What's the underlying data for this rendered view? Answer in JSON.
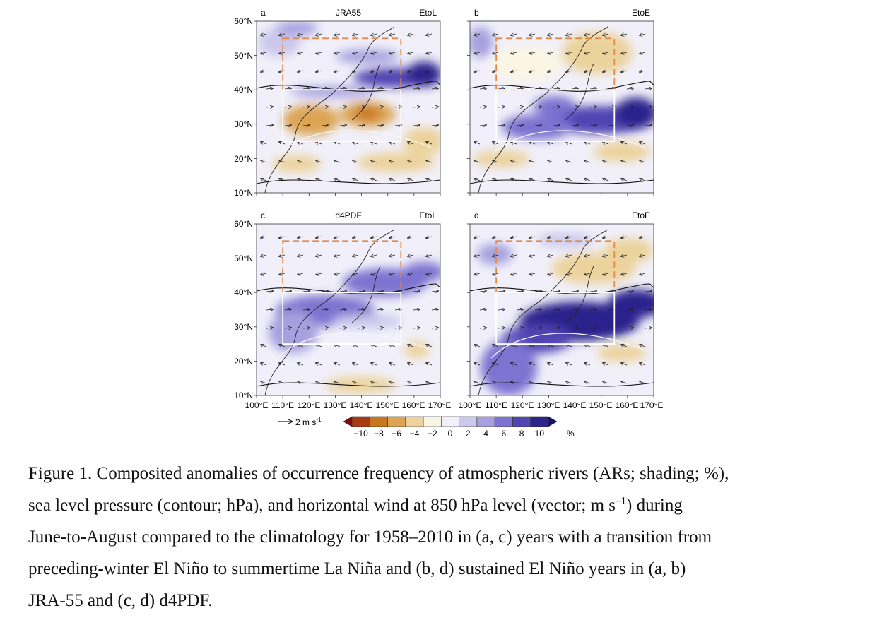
{
  "figure": {
    "panels": [
      {
        "letter": "a",
        "source": "JRA55",
        "case": "EtoL"
      },
      {
        "letter": "b",
        "source": "",
        "case": "EtoE"
      },
      {
        "letter": "c",
        "source": "d4PDF",
        "case": "EtoL"
      },
      {
        "letter": "d",
        "source": "",
        "case": "EtoE"
      }
    ],
    "lat_labels": [
      "60°N",
      "50°N",
      "40°N",
      "30°N",
      "20°N",
      "10°N"
    ],
    "lon_labels": [
      "100°E",
      "110°E",
      "120°E",
      "130°E",
      "140°E",
      "150°E",
      "160°E",
      "170°E"
    ],
    "wind_scale_label": "2 m s",
    "wind_scale_exp": "-1",
    "colorbar": {
      "colors": [
        "#7f0b0b",
        "#a83a10",
        "#c8761d",
        "#dca453",
        "#ecd39c",
        "#fbf6e4",
        "#f1f0fa",
        "#ccc8ec",
        "#a7a0df",
        "#7d73d0",
        "#5145b3",
        "#2c248c",
        "#141463"
      ],
      "tick_labels": [
        "−10",
        "−8",
        "−6",
        "−4",
        "−2",
        "0",
        "2",
        "4",
        "6",
        "8",
        "10"
      ],
      "unit": "%"
    },
    "box_colors": {
      "upper_box": "#e08a4a",
      "lower_box": "#ffffff"
    }
  },
  "caption": {
    "lines": [
      "Figure 1. Composited anomalies of occurrence frequency of atmospheric rivers (ARs; shading; %),",
      "sea level pressure (contour; hPa), and horizontal wind at 850 hPa level (vector; m s",
      "June-to-August compared to the climatology for 1958–2010 in (a, c) years with a transition from",
      "preceding-winter El Niño to summertime La Niña and (b, d) sustained El Niño years in (a, b)",
      "JRA-55 and (c, d) d4PDF."
    ],
    "line2_sup": "–1",
    "line2_tail": ") during"
  }
}
